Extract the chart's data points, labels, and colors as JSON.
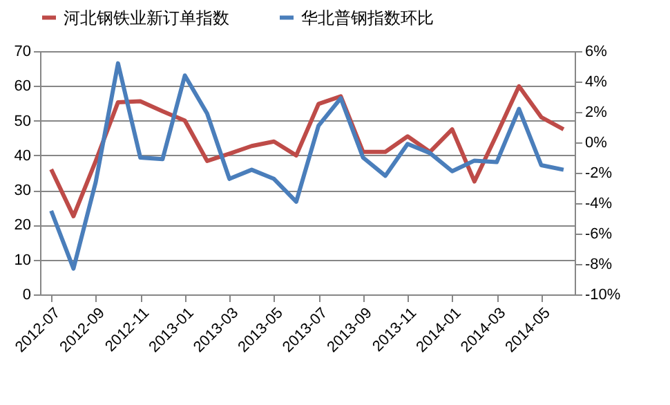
{
  "chart_data": {
    "type": "line",
    "categories": [
      "2012-07",
      null,
      "2012-09",
      null,
      "2012-11",
      null,
      "2013-01",
      null,
      "2013-03",
      null,
      "2013-05",
      null,
      "2013-07",
      null,
      "2013-09",
      null,
      "2013-11",
      null,
      "2014-01",
      null,
      "2014-03",
      null,
      "2014-05",
      null
    ],
    "series": [
      {
        "name": "河北钢铁业新订单指数",
        "color": "#be4b48",
        "values": [
          36,
          22.5,
          38.4,
          55.3,
          55.6,
          52.7,
          50,
          38.4,
          40.5,
          42.7,
          44,
          40,
          54.8,
          57,
          41,
          41,
          45.5,
          41,
          47.5,
          32.5,
          46,
          59.9,
          51,
          47.5
        ]
      },
      {
        "name": "华北普钢指数环比",
        "color": "#4a7ebb",
        "axis": "y2",
        "values": [
          -4.5,
          -8.3,
          -2.6,
          5.2,
          -1,
          -1.1,
          4.4,
          1.9,
          -2.4,
          -1.8,
          -2.4,
          -3.9,
          1.1,
          2.9,
          -1,
          -2.2,
          -0.1,
          -0.7,
          -1.9,
          -1.2,
          -1.3,
          2.2,
          -1.5,
          -1.8
        ]
      }
    ],
    "ylim": [
      0,
      70
    ],
    "yticks": [
      0,
      10,
      20,
      30,
      40,
      50,
      60,
      70
    ],
    "y2lim": [
      -10,
      6
    ],
    "y2ticks": [
      {
        "value": -10,
        "label": "-10%"
      },
      {
        "value": -8,
        "label": "-8%"
      },
      {
        "value": -6,
        "label": "-6%"
      },
      {
        "value": -4,
        "label": "-4%"
      },
      {
        "value": -2,
        "label": "-2%"
      },
      {
        "value": 0,
        "label": "0%"
      },
      {
        "value": 2,
        "label": "2%"
      },
      {
        "value": 4,
        "label": "4%"
      },
      {
        "value": 6,
        "label": "6%"
      }
    ],
    "grid": "y",
    "legend": "top",
    "marker": "none",
    "line_style": "solid"
  }
}
